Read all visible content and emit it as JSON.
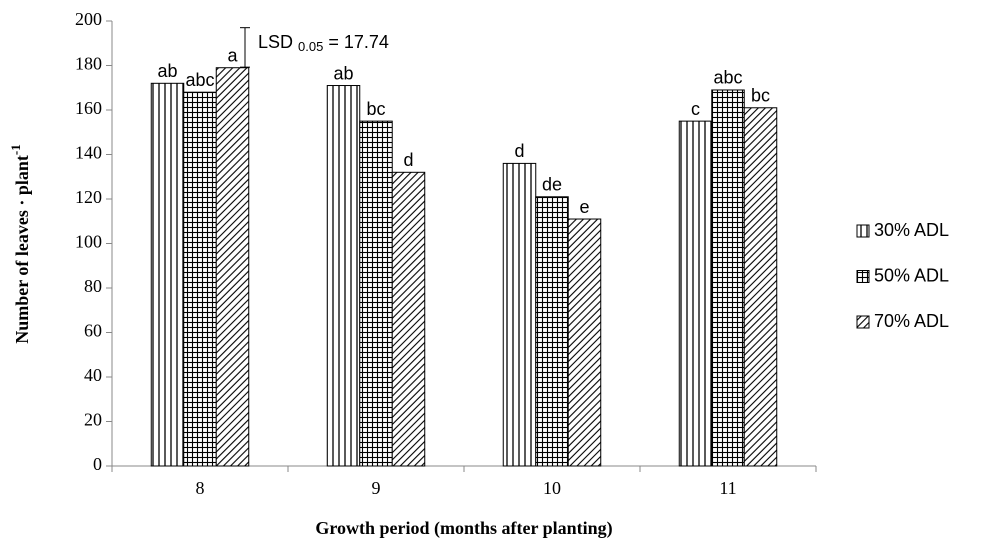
{
  "chart_data": {
    "type": "bar",
    "xlabel": "Growth period (months after planting)",
    "ylabel": "Number of leaves · plant",
    "ylabel_sup": "-1",
    "categories": [
      "8",
      "9",
      "10",
      "11"
    ],
    "series": [
      {
        "name": "30% ADL",
        "color": "#000000",
        "pattern": "vertical",
        "values": [
          172,
          171,
          136,
          155
        ],
        "letters": [
          "ab",
          "ab",
          "d",
          "c"
        ]
      },
      {
        "name": "50% ADL",
        "color": "#000000",
        "pattern": "grid",
        "values": [
          168,
          155,
          121,
          169
        ],
        "letters": [
          "abc",
          "bc",
          "de",
          "abc"
        ]
      },
      {
        "name": "70% ADL",
        "color": "#000000",
        "pattern": "diagonal",
        "values": [
          179,
          132,
          111,
          161
        ],
        "letters": [
          "a",
          "d",
          "e",
          "bc"
        ]
      }
    ],
    "ylim": [
      0,
      200
    ],
    "yticks": [
      0,
      20,
      40,
      60,
      80,
      100,
      120,
      140,
      160,
      180,
      200
    ],
    "lsd_label": "LSD",
    "lsd_sub": "0.05",
    "lsd_text": "= 17.74",
    "lsd_value": 17.74,
    "legend": "right"
  }
}
